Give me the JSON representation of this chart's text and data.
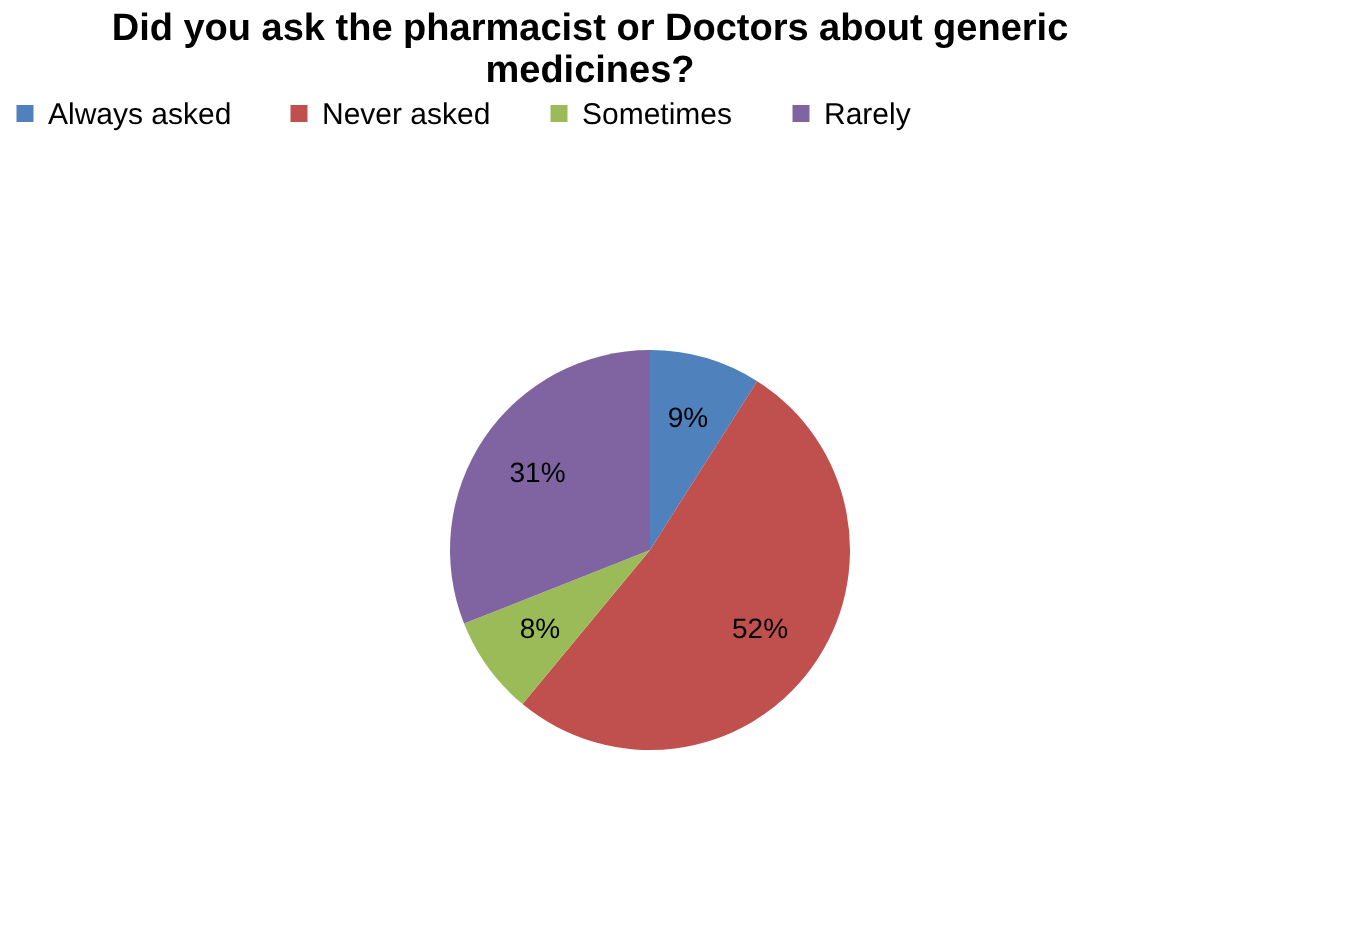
{
  "chart_data": {
    "type": "pie",
    "title": [
      "Did you ask the pharmacist or Doctors about generic",
      "medicines?"
    ],
    "categories": [
      "Always asked",
      "Never asked",
      "Sometimes",
      "Rarely"
    ],
    "values": [
      9,
      52,
      8,
      31
    ],
    "colors": [
      "#4f81bd",
      "#c0504d",
      "#9bbb59",
      "#8064a2"
    ],
    "value_labels": [
      "9%",
      "52%",
      "8%",
      "31%"
    ],
    "legend": "top"
  }
}
